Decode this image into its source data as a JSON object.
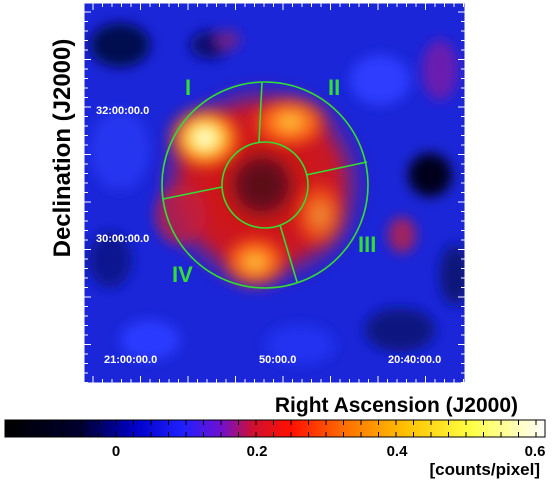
{
  "image": {
    "y_axis_title": "Declination (J2000)",
    "x_axis_title": "Right Ascension (J2000)",
    "dec_labels": [
      "32:00:00.0",
      "30:00:00.0"
    ],
    "ra_labels": [
      "21:00:00.0",
      "50:00.0",
      "20:40:00.0"
    ],
    "regions": [
      "I",
      "II",
      "III",
      "IV"
    ],
    "region_color": "#33dd33"
  },
  "colorbar": {
    "ticks": [
      "0",
      "0.2",
      "0.4",
      "0.6"
    ],
    "unit": "[counts/pixel]"
  }
}
